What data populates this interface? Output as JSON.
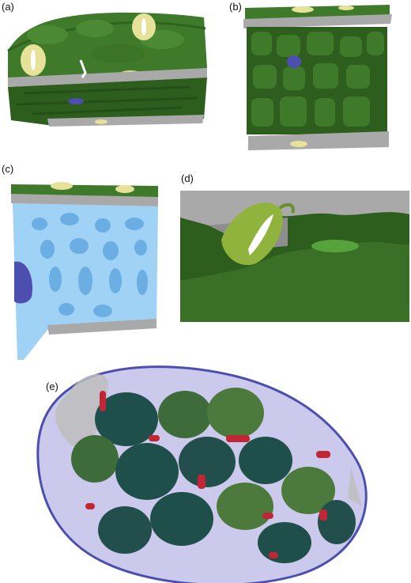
{
  "figure": {
    "panels": [
      {
        "id": "a",
        "label": "(a)"
      },
      {
        "id": "b",
        "label": "(b)"
      },
      {
        "id": "c",
        "label": "(c)"
      },
      {
        "id": "d",
        "label": "(d)"
      },
      {
        "id": "e",
        "label": "(e)"
      }
    ]
  },
  "colors": {
    "mesophyll_green": "#3f7a2a",
    "dark_green": "#2d5e1e",
    "epidermis_gray": "#a9a9a9",
    "stomata_yellow": "#e6e29a",
    "air_space_blue": "#9fd2f5",
    "cell_purple": "#4d4fb0",
    "chloroplast_teal": "#1f4f4a",
    "mitochondria_red": "#c02636",
    "envelope_violet": "#6e67c9"
  }
}
